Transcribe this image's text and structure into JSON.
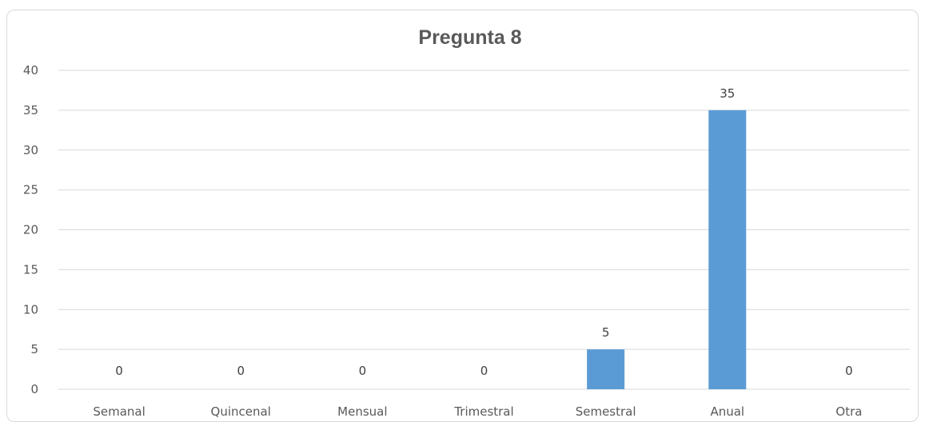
{
  "chart_data": {
    "type": "bar",
    "title": "Pregunta 8",
    "xlabel": "",
    "ylabel": "",
    "categories": [
      "Semanal",
      "Quincenal",
      "Mensual",
      "Trimestral",
      "Semestral",
      "Anual",
      "Otra"
    ],
    "values": [
      0,
      0,
      0,
      0,
      5,
      35,
      0
    ],
    "data_labels": [
      "0",
      "0",
      "0",
      "0",
      "5",
      "35",
      "0"
    ],
    "ylim": [
      0,
      40
    ],
    "yticks": [
      0,
      5,
      10,
      15,
      20,
      25,
      30,
      35,
      40
    ],
    "grid": true,
    "legend": "none",
    "colors": {
      "bar": "#5b9bd5",
      "grid": "#d9d9d9",
      "text": "#595959",
      "frame": "#d9d9d9"
    }
  }
}
